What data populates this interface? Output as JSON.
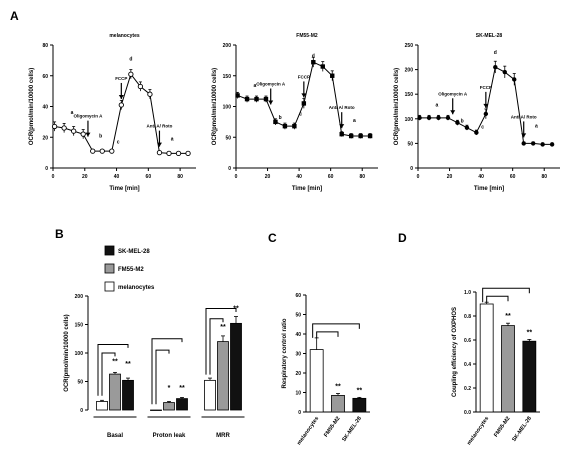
{
  "figure": {
    "panel_labels": [
      "A",
      "B",
      "C",
      "D"
    ]
  },
  "chart_data": [
    {
      "panel": "A",
      "type": "line",
      "title": "melanocytes",
      "xlabel": "Time [min]",
      "ylabel": "OCR(pmol/min/10000 cells)",
      "xlim": [
        0,
        90
      ],
      "ylim": [
        0,
        80
      ],
      "xticks": [
        0,
        20,
        40,
        60,
        80
      ],
      "yticks": [
        0,
        20,
        40,
        60,
        80
      ],
      "marker": "open-circle",
      "series": [
        {
          "x": [
            1,
            7,
            13,
            19,
            25,
            31,
            37,
            43,
            49,
            55,
            61,
            67,
            73,
            79,
            85
          ],
          "y": [
            27,
            26,
            24,
            22,
            11,
            11,
            11,
            41,
            61,
            53,
            48,
            10,
            9.5,
            9.5,
            9.5
          ],
          "err": [
            3,
            3,
            3,
            3,
            1,
            1,
            1,
            3,
            3,
            3,
            3,
            1,
            1,
            1,
            1
          ]
        }
      ],
      "injections": [
        {
          "label": "Oligomycin A",
          "x": 22
        },
        {
          "label": "FCCP",
          "x": 43
        },
        {
          "label": "Anti A/ Roto",
          "x": 67
        }
      ],
      "annotations": [
        {
          "text": "a",
          "x": 12,
          "y": 35
        },
        {
          "text": "b",
          "x": 30,
          "y": 20
        },
        {
          "text": "c",
          "x": 41,
          "y": 16
        },
        {
          "text": "d",
          "x": 49,
          "y": 70
        },
        {
          "text": "a",
          "x": 75,
          "y": 18
        }
      ]
    },
    {
      "panel": "A",
      "type": "line",
      "title": "FM55-M2",
      "xlabel": "Time [min]",
      "ylabel": "OCR(pmol/min/10000 cells)",
      "xlim": [
        0,
        90
      ],
      "ylim": [
        0,
        200
      ],
      "xticks": [
        0,
        20,
        40,
        60,
        80
      ],
      "yticks": [
        0,
        50,
        100,
        150,
        200
      ],
      "marker": "filled-square",
      "series": [
        {
          "x": [
            1,
            7,
            13,
            19,
            25,
            31,
            37,
            43,
            49,
            55,
            61,
            67,
            73,
            79,
            85
          ],
          "y": [
            118,
            112,
            112,
            112,
            75,
            68,
            68,
            105,
            172,
            165,
            150,
            55,
            52,
            52,
            52
          ],
          "err": [
            5,
            5,
            5,
            5,
            5,
            5,
            5,
            8,
            8,
            8,
            8,
            4,
            4,
            4,
            4
          ]
        }
      ],
      "injections": [
        {
          "label": "Oligomycin A",
          "x": 22
        },
        {
          "label": "FCCP",
          "x": 43
        },
        {
          "label": "Anti A/ Roto",
          "x": 67
        }
      ],
      "annotations": [
        {
          "text": "a",
          "x": 12,
          "y": 132
        },
        {
          "text": "b",
          "x": 28,
          "y": 80
        },
        {
          "text": "c",
          "x": 41,
          "y": 85
        },
        {
          "text": "d",
          "x": 49,
          "y": 180
        },
        {
          "text": "a",
          "x": 75,
          "y": 75
        }
      ]
    },
    {
      "panel": "A",
      "type": "line",
      "title": "SK-MEL-28",
      "xlabel": "Time [min]",
      "ylabel": "OCR(pmol/min/10000 cells)",
      "xlim": [
        0,
        90
      ],
      "ylim": [
        0,
        250
      ],
      "xticks": [
        0,
        20,
        40,
        60,
        80
      ],
      "yticks": [
        0,
        50,
        100,
        150,
        200,
        250
      ],
      "marker": "filled-circle",
      "series": [
        {
          "x": [
            1,
            7,
            13,
            19,
            25,
            31,
            37,
            43,
            49,
            55,
            61,
            67,
            73,
            79,
            85
          ],
          "y": [
            102,
            102,
            102,
            102,
            92,
            82,
            72,
            110,
            205,
            195,
            180,
            50,
            50,
            48,
            48
          ],
          "err": [
            5,
            5,
            5,
            5,
            5,
            5,
            5,
            10,
            12,
            12,
            12,
            3,
            3,
            3,
            3
          ]
        }
      ],
      "injections": [
        {
          "label": "Oligomycin A",
          "x": 22
        },
        {
          "label": "FCCP",
          "x": 43
        },
        {
          "label": "Anti A/ Roto",
          "x": 67
        }
      ],
      "annotations": [
        {
          "text": "a",
          "x": 12,
          "y": 125
        },
        {
          "text": "b",
          "x": 28,
          "y": 92
        },
        {
          "text": "c",
          "x": 41,
          "y": 80
        },
        {
          "text": "d",
          "x": 49,
          "y": 232
        },
        {
          "text": "a",
          "x": 75,
          "y": 82
        }
      ]
    },
    {
      "panel": "B",
      "type": "bar",
      "ylabel": "OCR(pmol/min/10000 cells)",
      "ylim": [
        0,
        200
      ],
      "yticks": [
        0,
        50,
        100,
        150,
        200
      ],
      "categories": [
        "Basal",
        "Proton leak",
        "MRR"
      ],
      "legend": [
        "SK-MEL-28",
        "FM55-M2",
        "melanocytes"
      ],
      "series": [
        {
          "name": "melanocytes",
          "color": "#ffffff",
          "values": [
            15,
            0,
            52
          ],
          "err": [
            2,
            0,
            4
          ]
        },
        {
          "name": "FM55-M2",
          "color": "#9a9a9a",
          "values": [
            63,
            13,
            120
          ],
          "err": [
            3,
            2,
            10
          ]
        },
        {
          "name": "SK-MEL-28",
          "color": "#111111",
          "values": [
            52,
            20,
            152
          ],
          "err": [
            4,
            2,
            12
          ]
        }
      ],
      "significance": [
        {
          "text": "**",
          "category": 0,
          "series": 1,
          "y": 82
        },
        {
          "text": "**",
          "category": 0,
          "series": 2,
          "y": 77
        },
        {
          "text": "*",
          "category": 1,
          "series": 1,
          "y": 35
        },
        {
          "text": "**",
          "category": 1,
          "series": 2,
          "y": 35
        },
        {
          "text": "**",
          "category": 2,
          "series": 1,
          "y": 142
        },
        {
          "text": "**",
          "category": 2,
          "series": 2,
          "y": 175
        }
      ],
      "brackets": [
        {
          "category": 0,
          "y_short": 100,
          "y_long": 115
        },
        {
          "category": 1,
          "y_short": 105,
          "y_long": 125
        },
        {
          "category": 2,
          "y_short": 160,
          "y_long": 178
        }
      ]
    },
    {
      "panel": "C",
      "type": "bar",
      "ylabel": "Respiratory control ratio",
      "ylim": [
        0,
        60
      ],
      "yticks": [
        0,
        10,
        20,
        30,
        40,
        50,
        60
      ],
      "categories": [
        "melanocytes",
        "FM55-M2",
        "SK-MEL-28"
      ],
      "colors": [
        "#ffffff",
        "#9a9a9a",
        "#111111"
      ],
      "values": [
        32,
        8.5,
        7
      ],
      "err": [
        6,
        1,
        0.5
      ],
      "significance": [
        "",
        "**",
        "**"
      ]
    },
    {
      "panel": "D",
      "type": "bar",
      "ylabel": "Coupling efficiency of OXPHOS",
      "ylim": [
        0,
        1.0
      ],
      "yticks": [
        0,
        0.2,
        0.4,
        0.6,
        0.8,
        1.0
      ],
      "categories": [
        "melanocytes",
        "FM55-M2",
        "SK-MEL-28"
      ],
      "colors": [
        "#ffffff",
        "#9a9a9a",
        "#111111"
      ],
      "values": [
        0.9,
        0.72,
        0.59
      ],
      "err": [
        0.015,
        0.02,
        0.015
      ],
      "significance": [
        "",
        "**",
        "**"
      ]
    }
  ]
}
